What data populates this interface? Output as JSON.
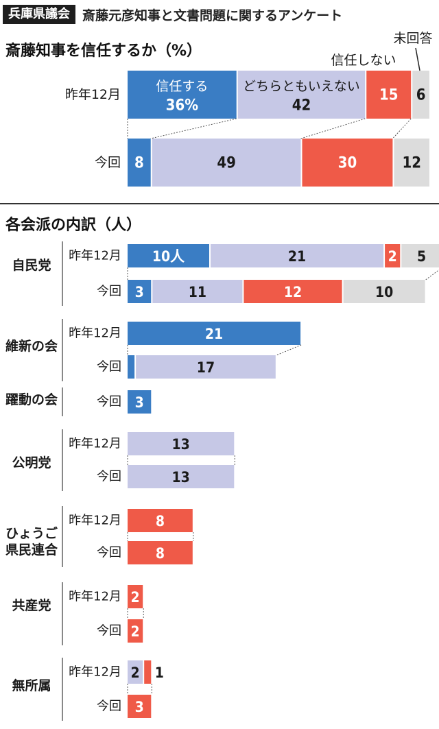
{
  "header": {
    "tag": "兵庫県議会",
    "title": "斎藤元彦知事と文書問題に関するアンケート"
  },
  "colors": {
    "trust": "#3a7dc4",
    "neither": "#c6c8e6",
    "distrust": "#ef5a48",
    "no_answer": "#dcdcdc",
    "text_dark": "#1a1a1a"
  },
  "section1": {
    "title": "斎藤知事を信任するか（%）"
  },
  "section2": {
    "title": "各会派の内訳（人）"
  },
  "chart_data": [
    {
      "type": "bar",
      "title": "斎藤知事を信任するか（%）",
      "orientation": "horizontal",
      "stacked": true,
      "categories": [
        "昨年12月",
        "今回"
      ],
      "series": [
        {
          "name": "信任する",
          "values": [
            36,
            8
          ]
        },
        {
          "name": "どちらともいえない",
          "values": [
            42,
            49
          ]
        },
        {
          "name": "信任しない",
          "values": [
            15,
            30
          ]
        },
        {
          "name": "未回答",
          "values": [
            6,
            12
          ]
        }
      ],
      "first_value_suffix": "%"
    },
    {
      "type": "bar",
      "title": "各会派の内訳（人）",
      "orientation": "horizontal",
      "stacked": true,
      "unit_label": "人",
      "period_labels": [
        "昨年12月",
        "今回"
      ],
      "groups": [
        {
          "name": "自民党",
          "rows": [
            {
              "period": "昨年12月",
              "values": [
                10,
                21,
                2,
                5
              ]
            },
            {
              "period": "今回",
              "values": [
                3,
                11,
                12,
                10
              ]
            }
          ]
        },
        {
          "name": "維新の会",
          "rows": [
            {
              "period": "昨年12月",
              "values": [
                21,
                0,
                0,
                0
              ]
            },
            {
              "period": "今回",
              "values": [
                1,
                17,
                0,
                0
              ]
            }
          ]
        },
        {
          "name": "躍動の会",
          "rows": [
            {
              "period": "今回",
              "values": [
                3,
                0,
                0,
                0
              ]
            }
          ]
        },
        {
          "name": "公明党",
          "rows": [
            {
              "period": "昨年12月",
              "values": [
                0,
                13,
                0,
                0
              ]
            },
            {
              "period": "今回",
              "values": [
                0,
                13,
                0,
                0
              ]
            }
          ]
        },
        {
          "name": "ひょうご\n県民連合",
          "rows": [
            {
              "period": "昨年12月",
              "values": [
                0,
                0,
                8,
                0
              ]
            },
            {
              "period": "今回",
              "values": [
                0,
                0,
                8,
                0
              ]
            }
          ]
        },
        {
          "name": "共産党",
          "rows": [
            {
              "period": "昨年12月",
              "values": [
                0,
                0,
                2,
                0
              ]
            },
            {
              "period": "今回",
              "values": [
                0,
                0,
                2,
                0
              ]
            }
          ]
        },
        {
          "name": "無所属",
          "rows": [
            {
              "period": "昨年12月",
              "values": [
                0,
                2,
                1,
                0
              ]
            },
            {
              "period": "今回",
              "values": [
                0,
                0,
                3,
                0
              ]
            }
          ]
        }
      ]
    }
  ]
}
